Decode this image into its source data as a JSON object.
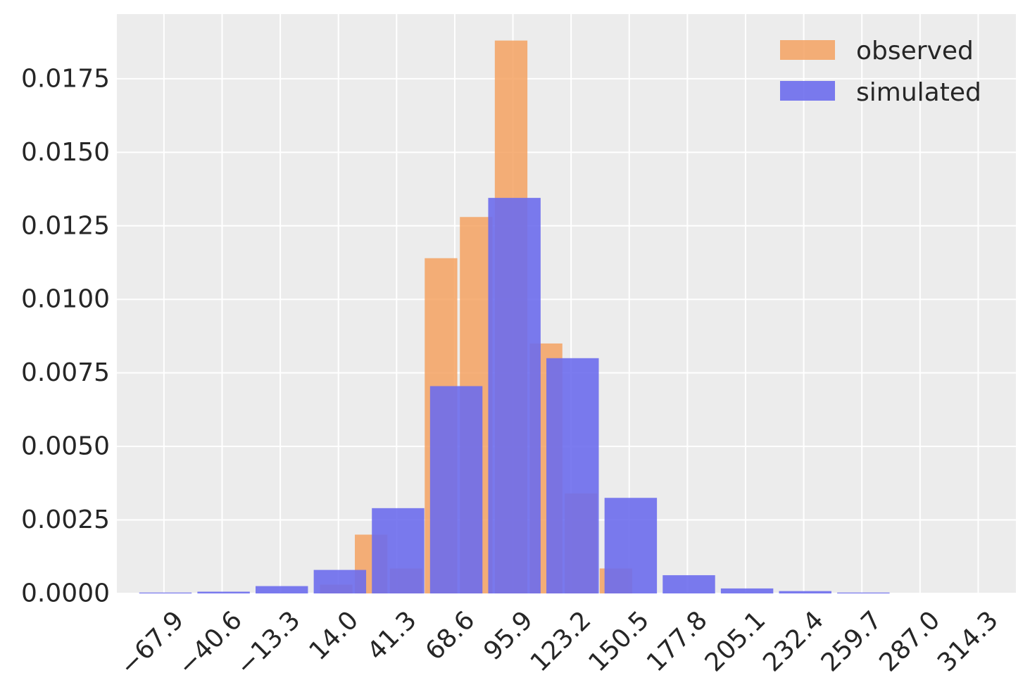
{
  "chart_data": {
    "type": "bar",
    "title": "",
    "xlabel": "",
    "ylabel": "",
    "ylim": [
      0,
      0.0197
    ],
    "xlim": [
      -90,
      332
    ],
    "grid": true,
    "legend_position": "top-right",
    "x_ticks": [
      "−67.9",
      "−40.6",
      "−13.3",
      "14.0",
      "41.3",
      "68.6",
      "95.9",
      "123.2",
      "150.5",
      "177.8",
      "205.1",
      "232.4",
      "259.7",
      "287.0",
      "314.3"
    ],
    "x_tick_values": [
      -67.9,
      -40.6,
      -13.3,
      14.0,
      41.3,
      68.6,
      95.9,
      123.2,
      150.5,
      177.8,
      205.1,
      232.4,
      259.7,
      287.0,
      314.3
    ],
    "y_ticks": [
      "0.0000",
      "0.0025",
      "0.0050",
      "0.0075",
      "0.0100",
      "0.0125",
      "0.0150",
      "0.0175"
    ],
    "y_tick_values": [
      0.0,
      0.0025,
      0.005,
      0.0075,
      0.01,
      0.0125,
      0.015,
      0.0175
    ],
    "series": [
      {
        "name": "observed",
        "color": "#f4a261",
        "opacity": 0.85,
        "bars": [
          {
            "left": 5.3,
            "right": 20.6,
            "value": 0.0003
          },
          {
            "left": 21.7,
            "right": 37.0,
            "value": 0.002
          },
          {
            "left": 38.1,
            "right": 53.4,
            "value": 0.00085
          },
          {
            "left": 54.5,
            "right": 69.8,
            "value": 0.0114
          },
          {
            "left": 71.0,
            "right": 86.3,
            "value": 0.0128
          },
          {
            "left": 87.4,
            "right": 102.7,
            "value": 0.0188
          },
          {
            "left": 103.8,
            "right": 119.1,
            "value": 0.0085
          },
          {
            "left": 120.2,
            "right": 135.5,
            "value": 0.0034
          },
          {
            "left": 136.6,
            "right": 151.9,
            "value": 0.00085
          }
        ]
      },
      {
        "name": "simulated",
        "color": "#6d6ded",
        "opacity": 0.9,
        "bars": [
          {
            "left": -79.5,
            "right": -54.9,
            "value": 3e-05
          },
          {
            "left": -52.2,
            "right": -27.6,
            "value": 6e-05
          },
          {
            "left": -24.9,
            "right": -0.3,
            "value": 0.00025
          },
          {
            "left": 2.4,
            "right": 27.0,
            "value": 0.0008
          },
          {
            "left": 29.7,
            "right": 54.3,
            "value": 0.0029
          },
          {
            "left": 57.0,
            "right": 81.6,
            "value": 0.00705
          },
          {
            "left": 84.3,
            "right": 108.9,
            "value": 0.01345
          },
          {
            "left": 111.6,
            "right": 136.2,
            "value": 0.008
          },
          {
            "left": 138.9,
            "right": 163.5,
            "value": 0.00325
          },
          {
            "left": 166.2,
            "right": 190.8,
            "value": 0.00062
          },
          {
            "left": 193.5,
            "right": 218.1,
            "value": 0.00017
          },
          {
            "left": 220.8,
            "right": 245.4,
            "value": 8e-05
          },
          {
            "left": 248.1,
            "right": 272.7,
            "value": 3e-05
          }
        ]
      }
    ],
    "colors": {
      "plot_background": "#ececec",
      "grid": "#ffffff",
      "text": "#262626",
      "overlap": "#7d58b8"
    }
  }
}
